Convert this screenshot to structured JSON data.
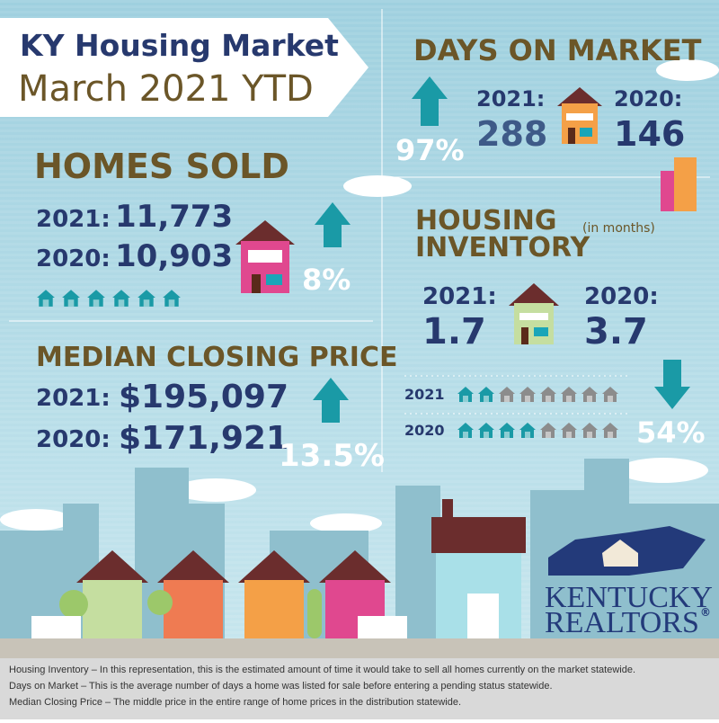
{
  "header": {
    "title": "KY Housing Market",
    "subtitle": "March 2021 YTD"
  },
  "homes_sold": {
    "heading": "HOMES SOLD",
    "rows": [
      [
        "2021:",
        "11,773"
      ],
      [
        "2020:",
        "10,903"
      ]
    ],
    "change": "8%"
  },
  "median_closing_price": {
    "heading": "MEDIAN CLOSING PRICE",
    "rows": [
      [
        "2021:",
        "$195,097"
      ],
      [
        "2020:",
        "$171,921"
      ]
    ],
    "change": "13.5%"
  },
  "days_on_market": {
    "heading": "DAYS ON MARKET",
    "rows": [
      [
        "2021:",
        "288"
      ],
      [
        "2020:",
        "146"
      ]
    ],
    "change": "97%"
  },
  "housing_inventory": {
    "heading": [
      "HOUSING",
      "INVENTORY"
    ],
    "note": "(in months)",
    "rows": [
      [
        "2021:",
        "1.7"
      ],
      [
        "2020:",
        "3.7"
      ]
    ],
    "bar_labels": [
      "2021",
      "2020"
    ],
    "change": "54%"
  },
  "logo": {
    "line1": "KENTUCKY",
    "line2": "REALTORS",
    "mark": "®"
  },
  "footnotes": [
    "Housing Inventory – In this representation, this is the estimated amount of time it would take to sell all homes currently on the market statewide.",
    "Days on Market – This is the average number of days a home was listed for sale before entering a pending status statewide.",
    "Median Closing Price – The middle price in the entire range of home prices in the distribution statewide."
  ]
}
